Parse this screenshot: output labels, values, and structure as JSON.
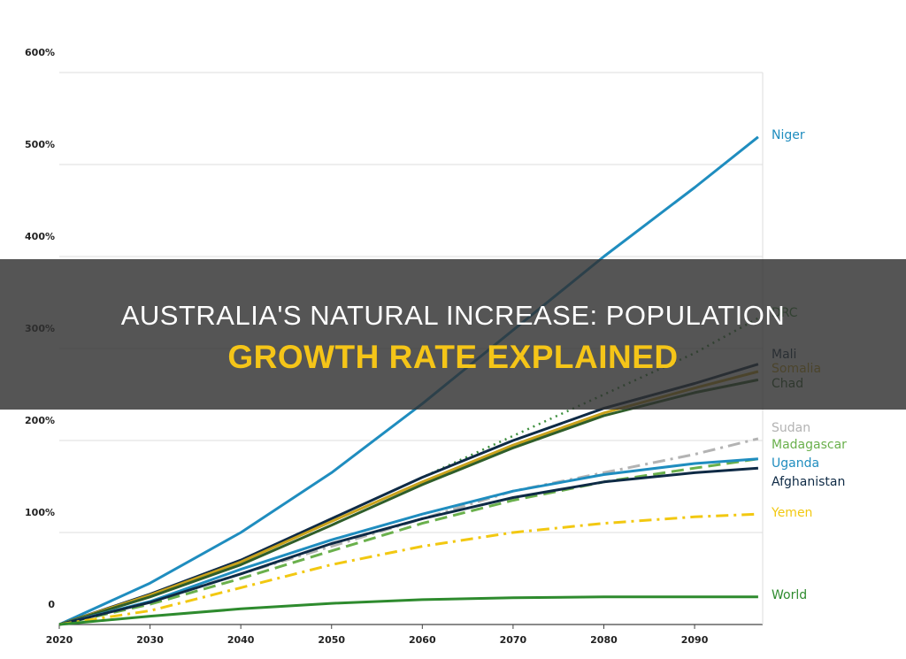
{
  "banner": {
    "line1": "AUSTRALIA'S NATURAL INCREASE: POPULATION",
    "line2": "GROWTH RATE EXPLAINED"
  },
  "chart_data": {
    "type": "line",
    "x": [
      2020,
      2030,
      2040,
      2050,
      2060,
      2070,
      2080,
      2090,
      2097
    ],
    "xlim": [
      2020,
      2097.5
    ],
    "xticks": [
      2020,
      2030,
      2040,
      2050,
      2060,
      2070,
      2080,
      2090
    ],
    "ylim": [
      0,
      600
    ],
    "yticks": [
      0,
      {
        "value": 100,
        "label": "100%"
      },
      {
        "value": 200,
        "label": "200%"
      },
      {
        "value": 300,
        "label": "300%"
      },
      {
        "value": 400,
        "label": "400%"
      },
      {
        "value": 500,
        "label": "500%"
      },
      {
        "value": 600,
        "label": "600%"
      }
    ],
    "grid": true,
    "series": [
      {
        "name": "Niger",
        "color": "#1f8dbf",
        "dash": "solid",
        "values": [
          0,
          45,
          100,
          165,
          240,
          320,
          400,
          475,
          530
        ]
      },
      {
        "name": "DRC",
        "color": "#3d8f3d",
        "dash": "dotted",
        "values": [
          0,
          30,
          70,
          115,
          160,
          205,
          250,
          295,
          333
        ]
      },
      {
        "name": "Mali",
        "color": "#0e2a45",
        "dash": "solid",
        "values": [
          0,
          33,
          70,
          115,
          160,
          200,
          235,
          262,
          283
        ]
      },
      {
        "name": "Somalia",
        "color": "#c9a21c",
        "dash": "solid",
        "values": [
          0,
          32,
          68,
          112,
          155,
          195,
          230,
          257,
          275
        ]
      },
      {
        "name": "Chad",
        "color": "#2f5e2a",
        "dash": "solid",
        "values": [
          0,
          30,
          65,
          108,
          152,
          192,
          227,
          252,
          266
        ]
      },
      {
        "name": "Sudan",
        "color": "#b3b3b3",
        "dash": "dashdot",
        "values": [
          0,
          25,
          55,
          85,
          115,
          145,
          165,
          185,
          202
        ]
      },
      {
        "name": "Madagascar",
        "color": "#6ab04c",
        "dash": "dashed",
        "values": [
          0,
          22,
          50,
          80,
          110,
          135,
          155,
          170,
          180
        ]
      },
      {
        "name": "Uganda",
        "color": "#1f8dbf",
        "dash": "solid",
        "values": [
          0,
          25,
          60,
          92,
          120,
          145,
          163,
          175,
          180
        ]
      },
      {
        "name": "Afghanistan",
        "color": "#0e2a45",
        "dash": "solid",
        "values": [
          0,
          24,
          55,
          88,
          115,
          138,
          155,
          165,
          170
        ]
      },
      {
        "name": "Yemen",
        "color": "#f2c811",
        "dash": "dashdot",
        "values": [
          0,
          15,
          40,
          65,
          85,
          100,
          110,
          117,
          120
        ]
      },
      {
        "name": "World",
        "color": "#2e8b2e",
        "dash": "solid",
        "values": [
          0,
          9,
          17,
          23,
          27,
          29,
          30,
          30,
          30
        ]
      }
    ]
  }
}
